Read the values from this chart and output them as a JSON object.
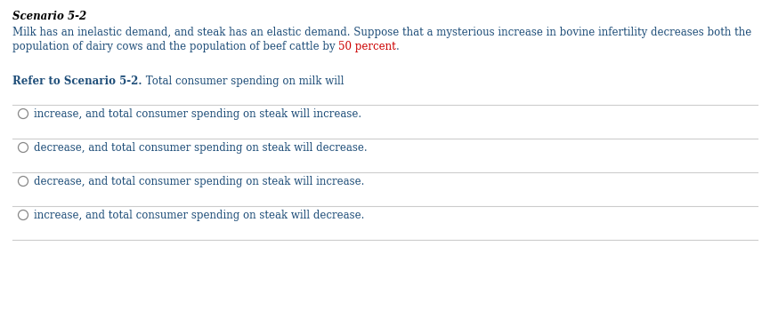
{
  "background_color": "#ffffff",
  "scenario_title": "Scenario 5-2",
  "scenario_body_line1": "Milk has an inelastic demand, and steak has an elastic demand. Suppose that a mysterious increase in bovine infertility decreases both the",
  "scenario_body_line2_before": "population of dairy cows and the population of beef cattle by ",
  "scenario_body_line2_red": "50 percent",
  "scenario_body_line2_after": ".",
  "question_bold": "Refer to Scenario 5-2.",
  "question_rest": " Total consumer spending on milk will",
  "options": [
    "increase, and total consumer spending on steak will increase.",
    "decrease, and total consumer spending on steak will decrease.",
    "decrease, and total consumer spending on steak will increase.",
    "increase, and total consumer spending on steak will decrease."
  ],
  "title_color": "#000000",
  "body_color": "#1f4e79",
  "number_color": "#cc0000",
  "question_bold_color": "#1f4e79",
  "option_color": "#1f4e79",
  "circle_color": "#888888",
  "line_color": "#cccccc",
  "title_fontsize": 8.5,
  "body_fontsize": 8.5,
  "question_fontsize": 8.5,
  "option_fontsize": 8.5,
  "fig_width": 8.65,
  "fig_height": 3.49,
  "dpi": 100
}
